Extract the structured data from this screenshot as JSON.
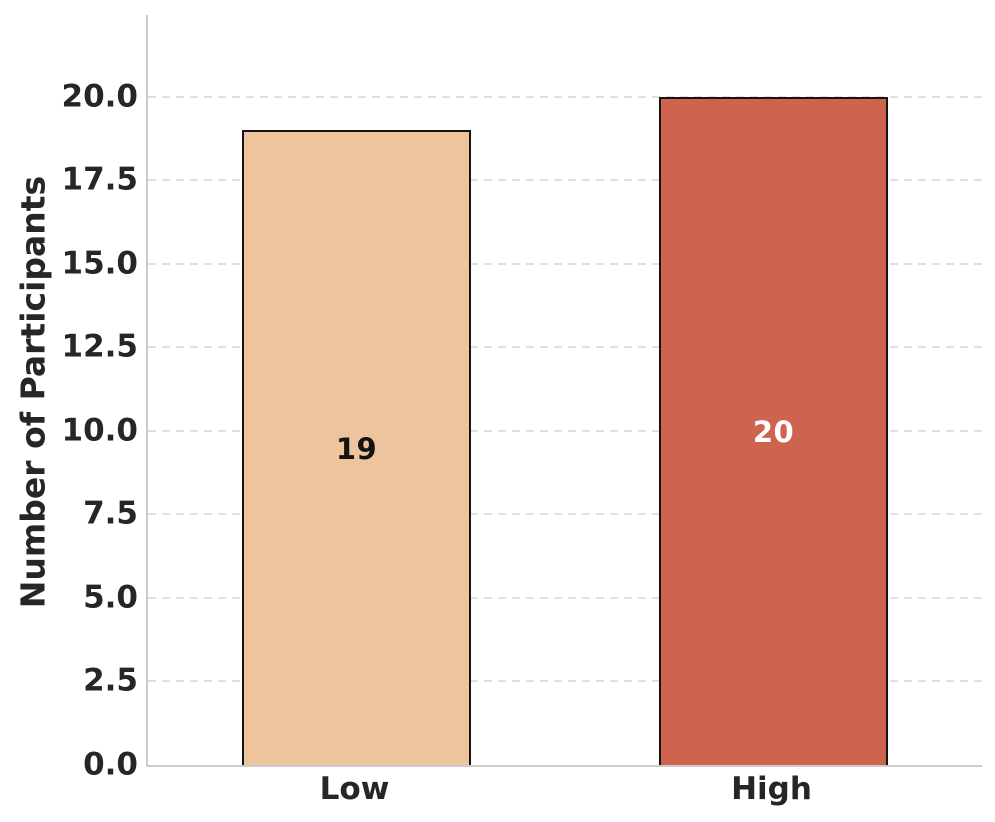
{
  "chart_data": {
    "type": "bar",
    "title": "",
    "xlabel": "",
    "ylabel": "Number of Participants",
    "categories": [
      "Low",
      "High"
    ],
    "values": [
      19,
      20
    ],
    "bar_labels": [
      "19",
      "20"
    ],
    "bar_label_colors": [
      "#141414",
      "#ffffff"
    ],
    "bar_colors": [
      "#edc49c",
      "#ce6450"
    ],
    "bar_edge_color": "#141414",
    "ylim": [
      0,
      22.45
    ],
    "yticks": [
      0,
      2.5,
      5,
      7.5,
      10,
      12.5,
      15,
      17.5,
      20
    ],
    "ytick_labels": [
      "0.0",
      "2.5",
      "5.0",
      "7.5",
      "10.0",
      "12.5",
      "15.0",
      "17.5",
      "20.0"
    ],
    "grid": "horizontal-dashed",
    "legend": "none",
    "colors": {
      "grid": "#e0e0e0",
      "spine": "#cccccc",
      "text": "#262626",
      "background": "#ffffff"
    }
  }
}
